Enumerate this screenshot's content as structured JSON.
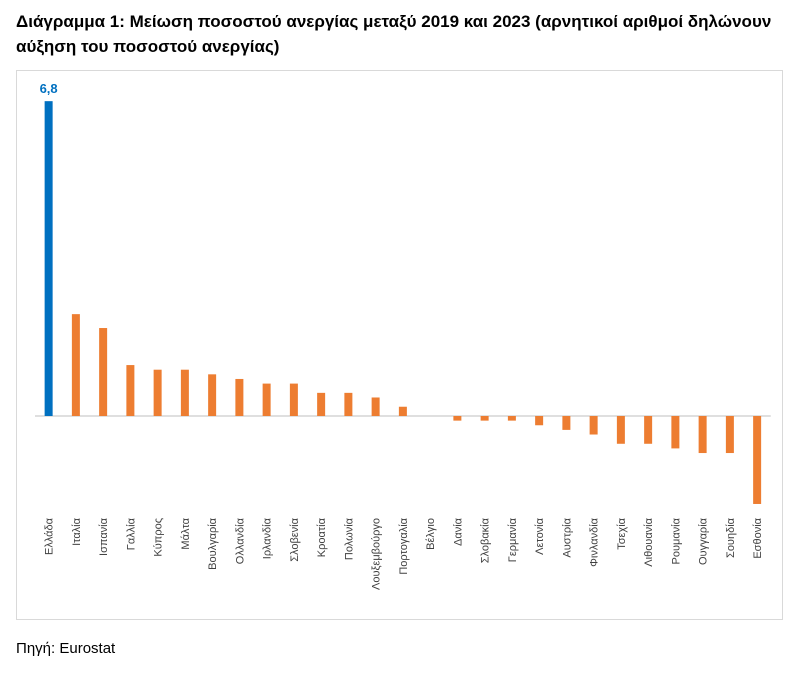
{
  "title": "Διάγραμμα 1: Μείωση ποσοστού ανεργίας μεταξύ 2019 και 2023 (αρνητικοί αριθμοί δηλώνουν αύξηση του ποσοστού ανεργίας)",
  "source": "Πηγή: Eurostat",
  "colors": {
    "highlight": "#0070c0",
    "bars": "#ed7d31",
    "axis": "#bfbfbf",
    "label_highlight": "#0070c0"
  },
  "chart_data": {
    "type": "bar",
    "title": "Διάγραμμα 1: Μείωση ποσοστού ανεργίας μεταξύ 2019 και 2023 (αρνητικοί αριθμοί δηλώνουν αύξηση του ποσοστού ανεργίας)",
    "categories": [
      "Ελλάδα",
      "Ιταλία",
      "Ισπανία",
      "Γαλλία",
      "Κύπρος",
      "Μάλτα",
      "Βουλγαρία",
      "Ολλανδία",
      "Ιρλανδία",
      "Σλοβενία",
      "Κροατία",
      "Πολωνία",
      "Λουξεμβούργο",
      "Πορτογαλία",
      "Βέλγιο",
      "Δανία",
      "Σλοβακία",
      "Γερμανία",
      "Λετονία",
      "Αυστρία",
      "Φινλανδία",
      "Τσεχία",
      "Λιθουανία",
      "Ρουμανία",
      "Ουγγαρία",
      "Σουηδία",
      "Εσθονία"
    ],
    "values": [
      6.8,
      2.2,
      1.9,
      1.1,
      1.0,
      1.0,
      0.9,
      0.8,
      0.7,
      0.7,
      0.5,
      0.5,
      0.4,
      0.2,
      0.0,
      -0.1,
      -0.1,
      -0.1,
      -0.2,
      -0.3,
      -0.4,
      -0.6,
      -0.6,
      -0.7,
      -0.8,
      -0.8,
      -1.9
    ],
    "highlight_index": 0,
    "data_labels": [
      {
        "index": 0,
        "text": "6,8"
      }
    ],
    "xlabel": "",
    "ylabel": "",
    "ylim": [
      -2.0,
      6.8
    ],
    "grid": false,
    "legend": "none"
  }
}
